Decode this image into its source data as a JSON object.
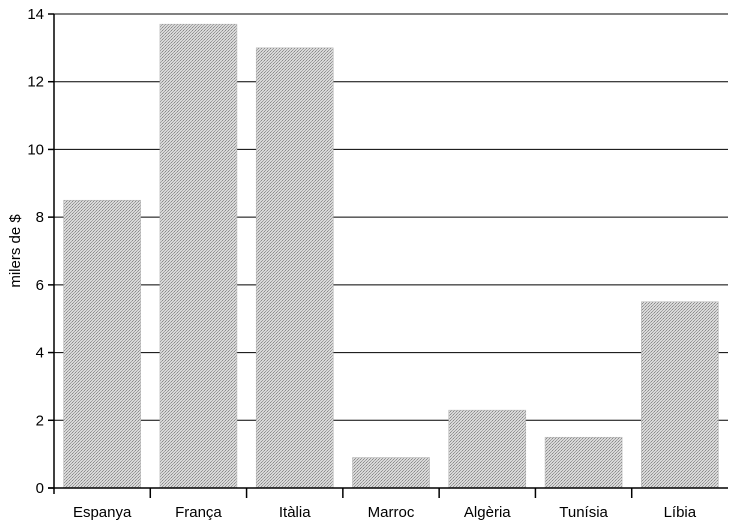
{
  "chart_data": {
    "type": "bar",
    "title": "",
    "xlabel": "",
    "ylabel": "milers de $",
    "categories": [
      "Espanya",
      "França",
      "Itàlia",
      "Marroc",
      "Algèria",
      "Tunísia",
      "Líbia"
    ],
    "values": [
      8.5,
      13.7,
      13.0,
      0.9,
      2.3,
      1.5,
      5.5
    ],
    "ylim": [
      0,
      14
    ],
    "yticks": [
      0,
      2,
      4,
      6,
      8,
      10,
      12,
      14
    ],
    "grid": true,
    "legend": "none",
    "bar_color": "#c8c8c8"
  }
}
